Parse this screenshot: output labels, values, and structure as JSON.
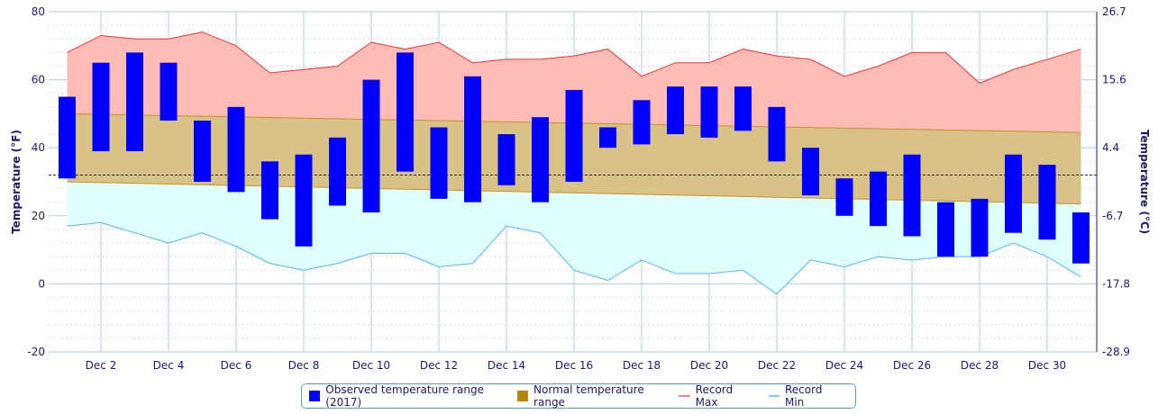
{
  "chart_data": {
    "type": "bar",
    "title": "",
    "xlabel": "",
    "ylabel": "Temperature (°F)",
    "ylabel_right": "Temperature (°C)",
    "ylim": [
      -20,
      80
    ],
    "yticks": [
      -20,
      0,
      20,
      40,
      60,
      80
    ],
    "yticks_right": [
      "-28.9",
      "-17.8",
      "-6.7",
      "4.4",
      "15.6",
      "26.7"
    ],
    "xtick_labels": [
      "Dec 2",
      "Dec 4",
      "Dec 6",
      "Dec 8",
      "Dec 10",
      "Dec 12",
      "Dec 14",
      "Dec 16",
      "Dec 18",
      "Dec 20",
      "Dec 22",
      "Dec 24",
      "Dec 26",
      "Dec 28",
      "Dec 30"
    ],
    "days": [
      1,
      2,
      3,
      4,
      5,
      6,
      7,
      8,
      9,
      10,
      11,
      12,
      13,
      14,
      15,
      16,
      17,
      18,
      19,
      20,
      21,
      22,
      23,
      24,
      25,
      26,
      27,
      28,
      29,
      30,
      31
    ],
    "freezing_line": 32,
    "series": [
      {
        "name": "Observed temperature range (2017)",
        "color": "#0000ff",
        "high": [
          55,
          65,
          68,
          65,
          48,
          52,
          36,
          38,
          43,
          60,
          68,
          46,
          61,
          44,
          49,
          57,
          46,
          54,
          58,
          58,
          58,
          52,
          40,
          31,
          33,
          38,
          24,
          25,
          38,
          35,
          21
        ],
        "low": [
          31,
          39,
          39,
          48,
          30,
          27,
          19,
          11,
          23,
          21,
          33,
          25,
          24,
          29,
          24,
          30,
          40,
          41,
          44,
          43,
          45,
          36,
          26,
          20,
          17,
          14,
          8,
          8,
          15,
          13,
          6
        ]
      },
      {
        "name": "Normal temperature range",
        "color": "#b8860b",
        "high_start": 50,
        "high_end": 44.5,
        "low_start": 30,
        "low_end": 23.5
      },
      {
        "name": "Record Max",
        "color": "#ff6666",
        "values": [
          68,
          73,
          72,
          72,
          74,
          70,
          62,
          63,
          64,
          71,
          69,
          71,
          65,
          66,
          66,
          67,
          69,
          61,
          65,
          65,
          69,
          67,
          66,
          61,
          64,
          68,
          68,
          59,
          63,
          66,
          69
        ]
      },
      {
        "name": "Record Min",
        "color": "#66bbff",
        "values": [
          17,
          18,
          15,
          12,
          15,
          11,
          6,
          4,
          6,
          9,
          9,
          5,
          6,
          17,
          15,
          4,
          1,
          7,
          3,
          3,
          4,
          -3,
          7,
          5,
          8,
          7,
          8,
          8,
          12,
          8,
          2
        ]
      }
    ],
    "legend": "bottom"
  }
}
